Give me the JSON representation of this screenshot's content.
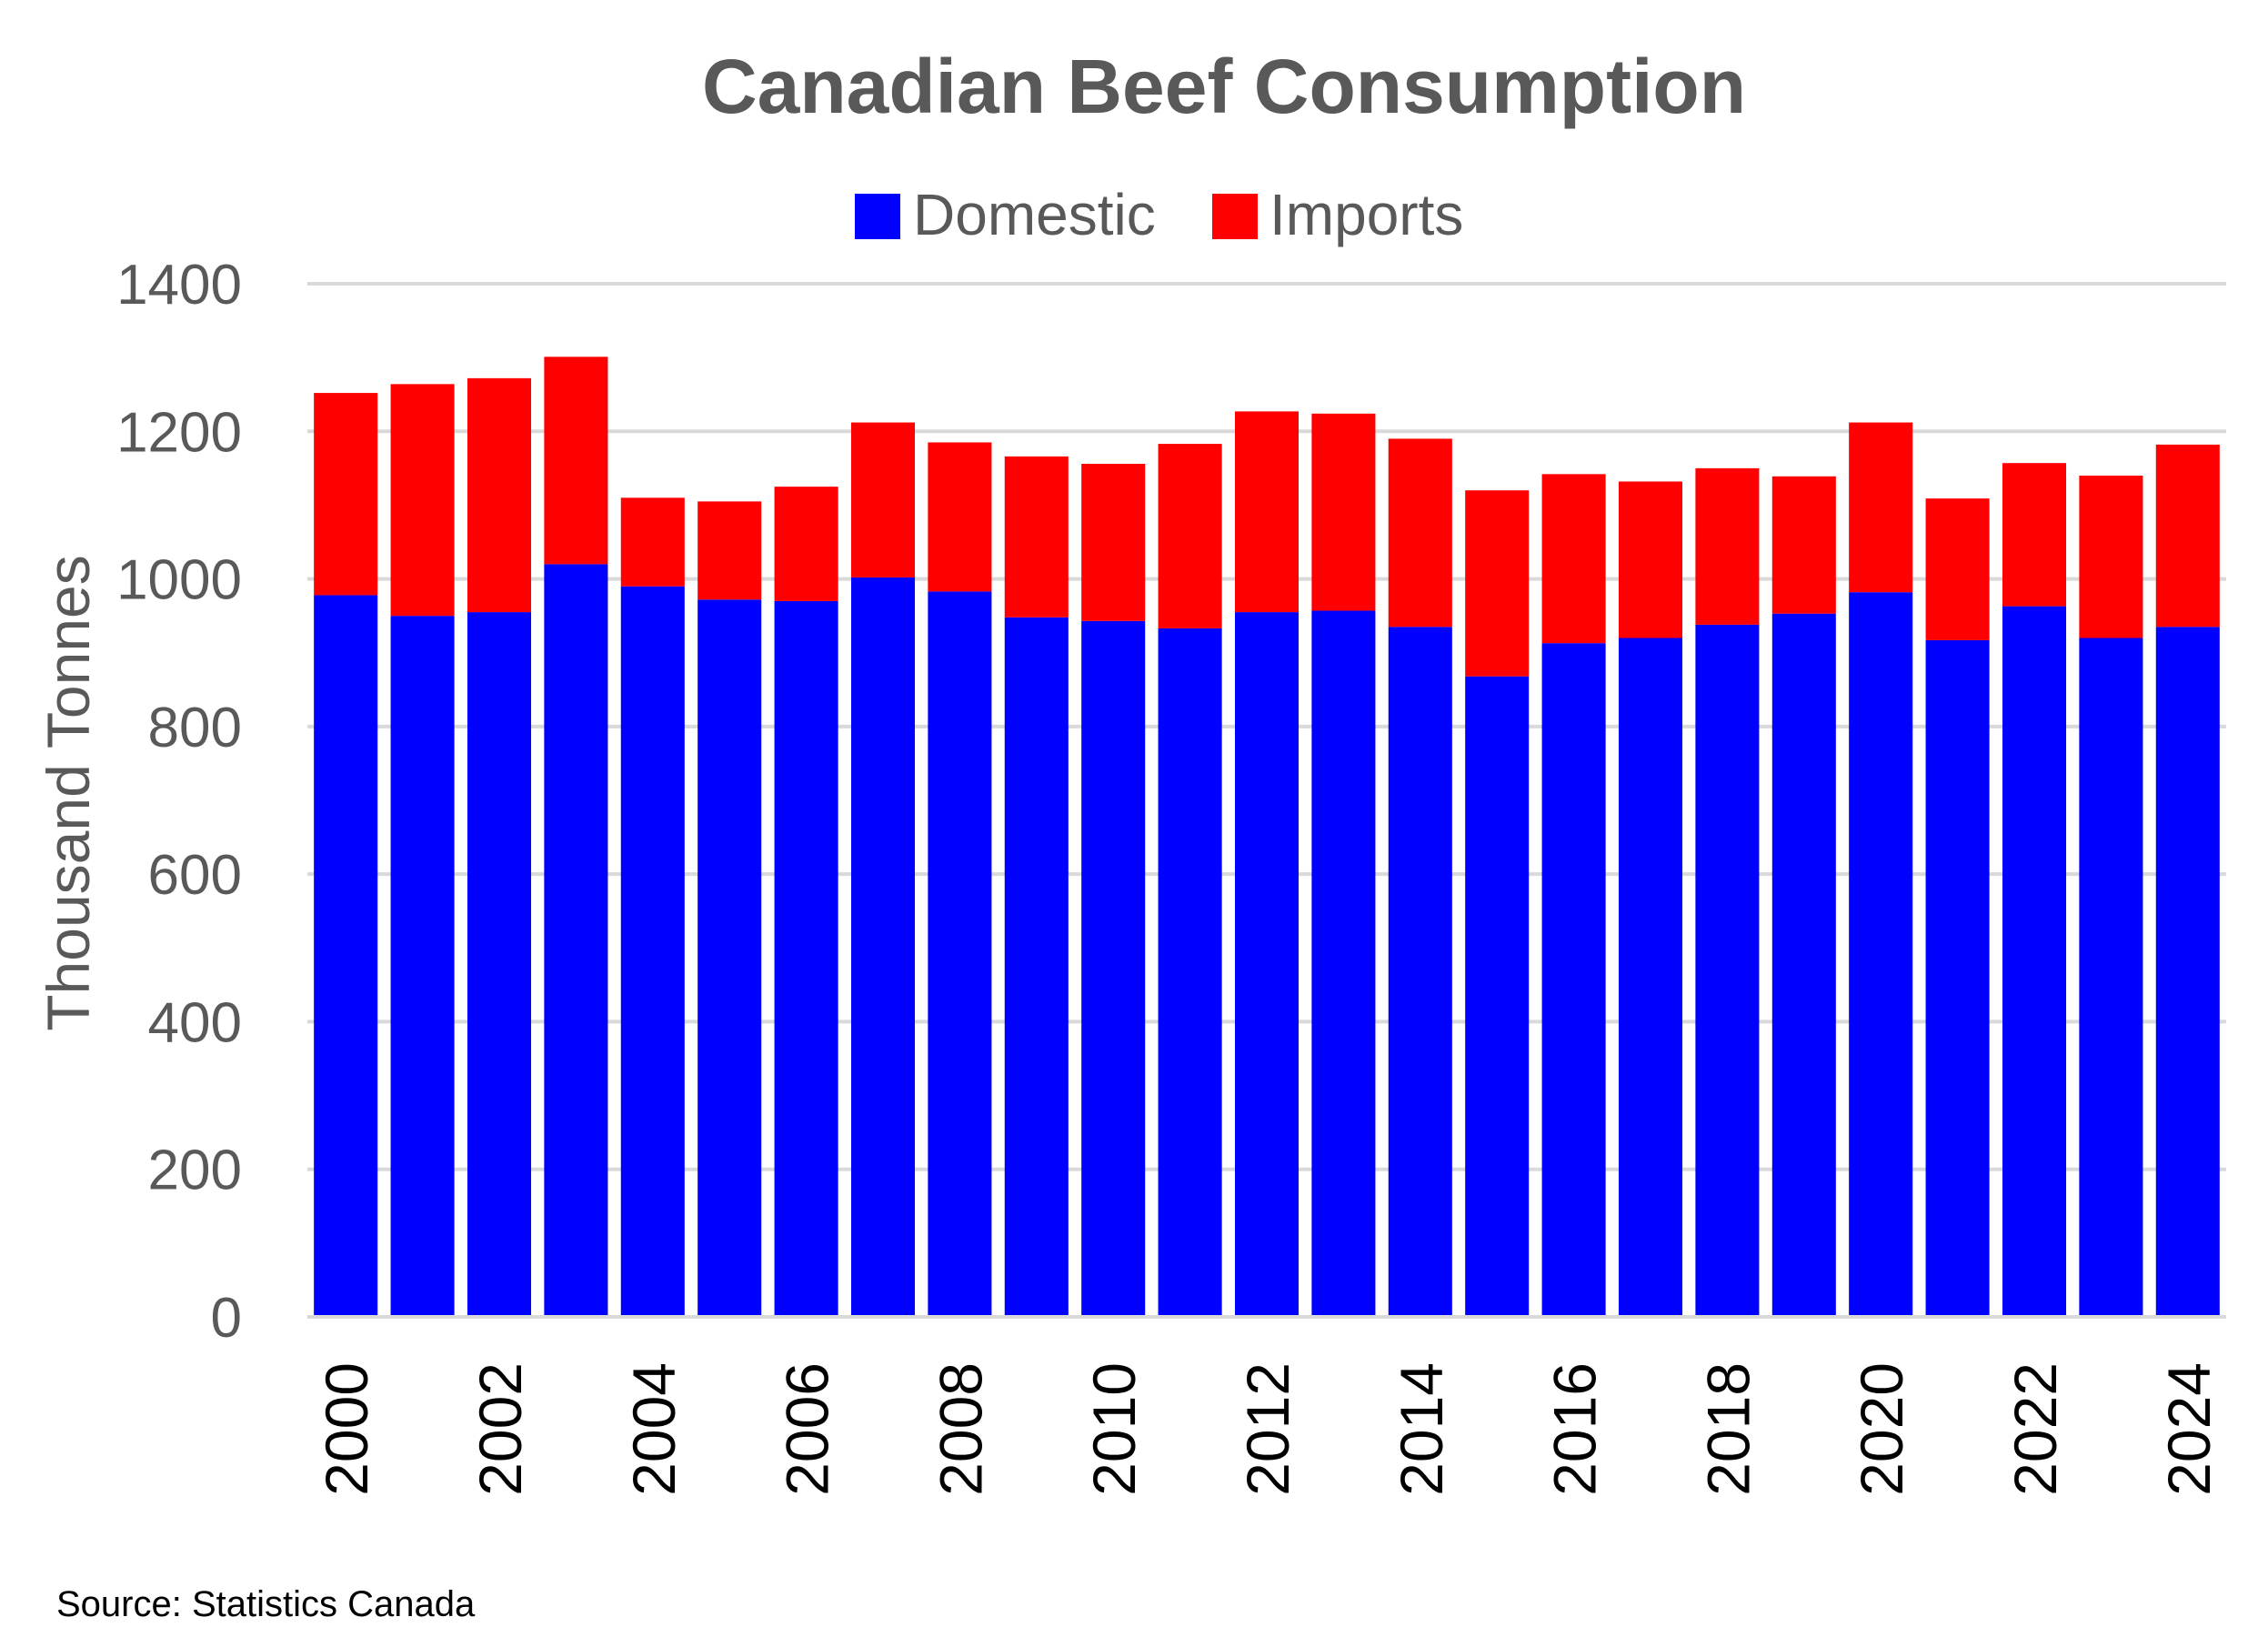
{
  "source_note": "Source: Statistics Canada",
  "chart_data": {
    "type": "bar",
    "stacked": true,
    "title": "Canadian Beef Consumption",
    "ylabel": "Thousand Tonnes",
    "xlabel": "",
    "ylim": [
      0,
      1400
    ],
    "yticks": [
      "0",
      "200",
      "400",
      "600",
      "800",
      "1000",
      "1200",
      "1400"
    ],
    "grid": true,
    "legend_position": "top-center",
    "categories": [
      "2000",
      "2001",
      "2002",
      "2003",
      "2004",
      "2005",
      "2006",
      "2007",
      "2008",
      "2009",
      "2010",
      "2011",
      "2012",
      "2013",
      "2014",
      "2015",
      "2016",
      "2017",
      "2018",
      "2019",
      "2020",
      "2021",
      "2022",
      "2023",
      "2024"
    ],
    "xtick_labels": [
      "2000",
      "2002",
      "2004",
      "2006",
      "2008",
      "2010",
      "2012",
      "2014",
      "2016",
      "2018",
      "2020",
      "2022",
      "2024"
    ],
    "series": [
      {
        "name": "Domestic",
        "color": "#0000FF",
        "values": [
          978,
          950,
          955,
          1020,
          990,
          972,
          970,
          1002,
          983,
          948,
          943,
          933,
          955,
          957,
          935,
          868,
          913,
          920,
          938,
          953,
          982,
          917,
          963,
          920,
          935
        ]
      },
      {
        "name": "Imports",
        "color": "#FF0000",
        "values": [
          274,
          314,
          317,
          281,
          120,
          133,
          155,
          210,
          202,
          218,
          213,
          250,
          272,
          267,
          255,
          252,
          229,
          212,
          212,
          186,
          230,
          192,
          194,
          220,
          247
        ]
      }
    ],
    "gridline_color": "#D9D9D9",
    "axis_text_color": "#595959"
  }
}
